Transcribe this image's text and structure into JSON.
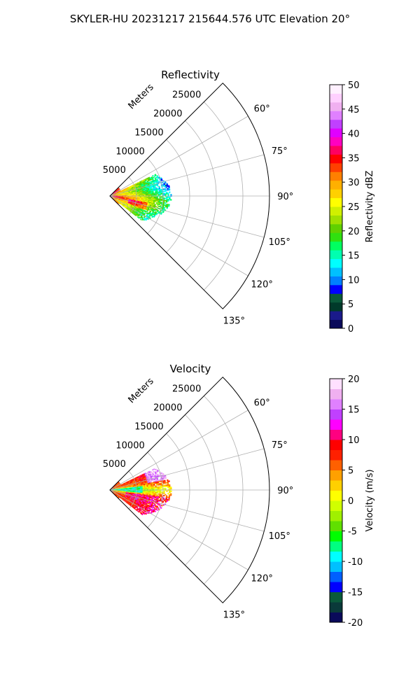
{
  "figure": {
    "suptitle": "SKYLER-HU  20231217  215644.576 UTC Elevation 20°"
  },
  "chart_data": [
    {
      "type": "heatmap",
      "subtype": "polar-sector (PPI)",
      "title": "Reflectivity",
      "radial_label": "Meters",
      "radial_ticks": [
        5000,
        10000,
        15000,
        20000,
        25000
      ],
      "azimuth_ticks": [
        "60°",
        "75°",
        "90°",
        "105°",
        "120°",
        "135°"
      ],
      "azimuth_range_deg": [
        45,
        135
      ],
      "radial_range": [
        0,
        30000
      ],
      "grid": true,
      "colorbar": {
        "label": "Reflectivity dBZ",
        "ticks": [
          0,
          5,
          10,
          15,
          20,
          25,
          30,
          35,
          40,
          45,
          50
        ],
        "range": [
          0,
          50
        ],
        "colors": [
          "#0a0a5a",
          "#1a1a8a",
          "#003a2a",
          "#0a5a3a",
          "#0000ff",
          "#0080ff",
          "#00c0ff",
          "#00ffff",
          "#00ffb0",
          "#00ff60",
          "#30e010",
          "#60d000",
          "#a0e000",
          "#d0f000",
          "#ffff00",
          "#ffd000",
          "#ffb000",
          "#ff8000",
          "#ff4000",
          "#ff0000",
          "#ff0060",
          "#ff00c0",
          "#e000ff",
          "#c040ff",
          "#e080ff",
          "#f0b0f0",
          "#ffd0ff",
          "#fff0ff"
        ]
      },
      "data_summary": {
        "max_range_m": 11500,
        "echo_azimuth_deg": [
          64,
          128
        ],
        "value_range_dbz": [
          10,
          35
        ]
      }
    },
    {
      "type": "heatmap",
      "subtype": "polar-sector (PPI)",
      "title": "Velocity",
      "radial_label": "Meters",
      "radial_ticks": [
        5000,
        10000,
        15000,
        20000,
        25000
      ],
      "azimuth_ticks": [
        "60°",
        "75°",
        "90°",
        "105°",
        "120°",
        "135°"
      ],
      "azimuth_range_deg": [
        45,
        135
      ],
      "radial_range": [
        0,
        30000
      ],
      "grid": true,
      "colorbar": {
        "label": "Velocity (m/s)",
        "ticks": [
          -20,
          -15,
          -10,
          -5,
          0,
          5,
          10,
          15,
          20
        ],
        "range": [
          -20,
          20
        ],
        "colors": [
          "#0a0a5a",
          "#0a3a3a",
          "#0a5a3a",
          "#0000ff",
          "#0060ff",
          "#00c0ff",
          "#00ffff",
          "#00ff80",
          "#00ff00",
          "#60e000",
          "#a0f000",
          "#d0ff00",
          "#ffff00",
          "#ffd000",
          "#ffa000",
          "#ff6000",
          "#ff2000",
          "#ff0000",
          "#ff0080",
          "#ff00ff",
          "#c040ff",
          "#e080ff",
          "#f0b0f0",
          "#ffe0ff"
        ]
      },
      "data_summary": {
        "max_range_m": 11500,
        "echo_azimuth_deg": [
          64,
          128
        ],
        "value_range_ms": [
          -12,
          15
        ]
      }
    }
  ]
}
